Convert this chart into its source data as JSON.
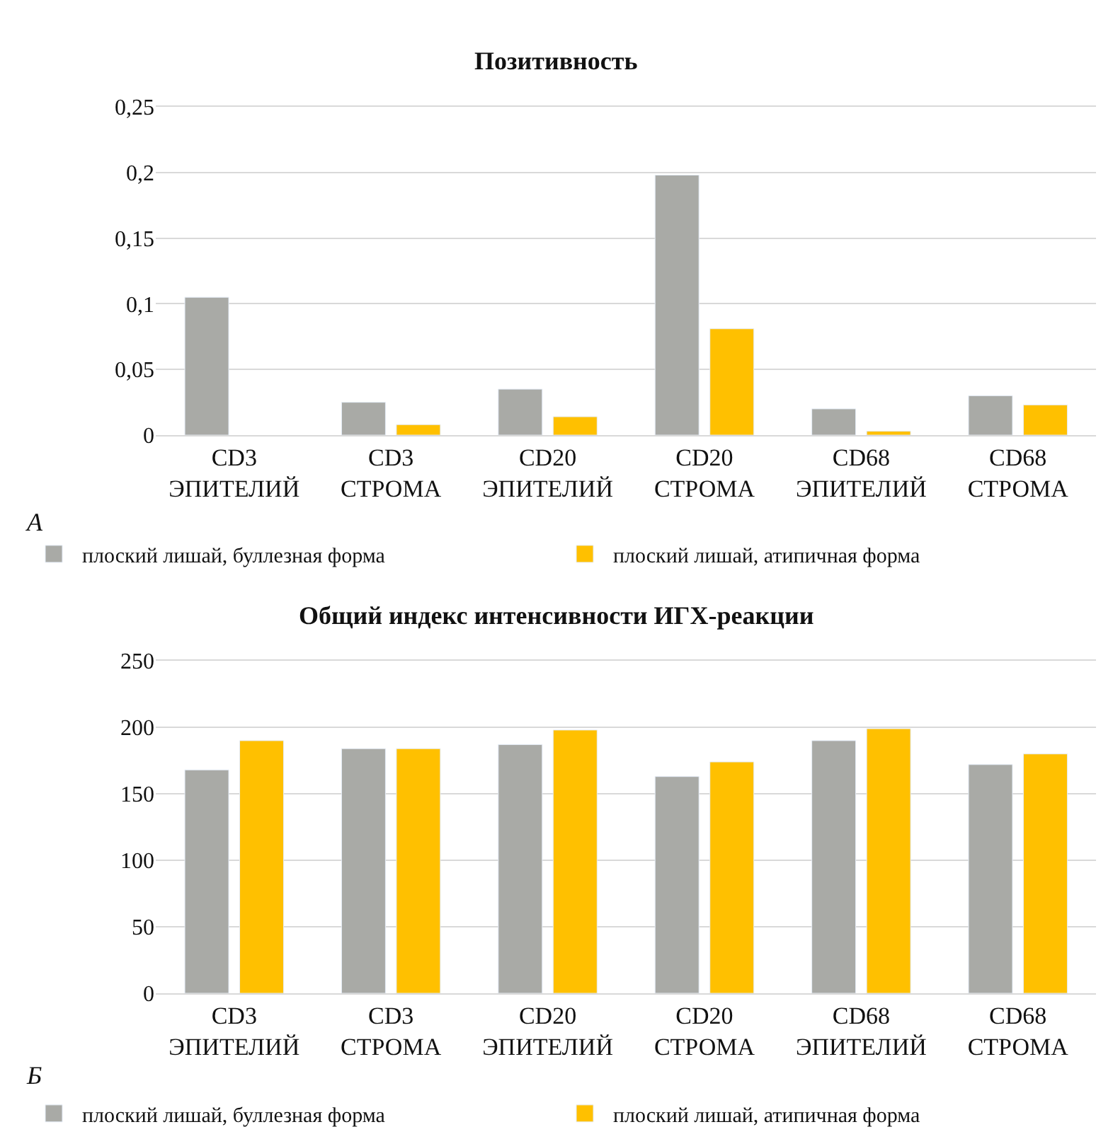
{
  "chart_data": [
    {
      "type": "bar",
      "title": "Позитивность",
      "categories": [
        "CD3\nЭПИТЕЛИЙ",
        "CD3\nСТРОМА",
        "CD20\nЭПИТЕЛИЙ",
        "CD20\nСТРОМА",
        "CD68\nЭПИТЕЛИЙ",
        "CD68\nСТРОМА"
      ],
      "series": [
        {
          "name": "плоский лишай, буллезная форма",
          "color": "#a9aaa6",
          "values": [
            0.105,
            0.025,
            0.035,
            0.198,
            0.02,
            0.03
          ]
        },
        {
          "name": "плоский лишай, атипичная форма",
          "color": "#ffc000",
          "values": [
            null,
            0.008,
            0.014,
            0.081,
            0.003,
            0.023
          ]
        }
      ],
      "ylim": [
        0,
        0.25
      ],
      "yticks": [
        0,
        {
          "value": 0.05,
          "label": "0,05"
        },
        {
          "value": 0.1,
          "label": "0,1"
        },
        {
          "value": 0.15,
          "label": "0,15"
        },
        {
          "value": 0.2,
          "label": "0,2"
        },
        {
          "value": 0.25,
          "label": "0,25"
        }
      ],
      "grid": "y",
      "legend": "bottom",
      "annotations": [
        "А"
      ]
    },
    {
      "type": "bar",
      "title": "Общий индекс интенсивности ИГХ-реакции",
      "categories": [
        "CD3\nЭПИТЕЛИЙ",
        "CD3\nСТРОМА",
        "CD20\nЭПИТЕЛИЙ",
        "CD20\nСТРОМА",
        "CD68\nЭПИТЕЛИЙ",
        "CD68\nСТРОМА"
      ],
      "series": [
        {
          "name": "плоский лишай, буллезная форма",
          "color": "#a9aaa6",
          "values": [
            168,
            184,
            187,
            163,
            190,
            172
          ]
        },
        {
          "name": "плоский лишай, атипичная форма",
          "color": "#ffc000",
          "values": [
            190,
            184,
            198,
            174,
            199,
            180
          ]
        }
      ],
      "ylim": [
        0,
        250
      ],
      "yticks": [
        0,
        50,
        100,
        150,
        200,
        250
      ],
      "grid": "y",
      "legend": "bottom",
      "annotations": [
        "Б"
      ]
    }
  ]
}
